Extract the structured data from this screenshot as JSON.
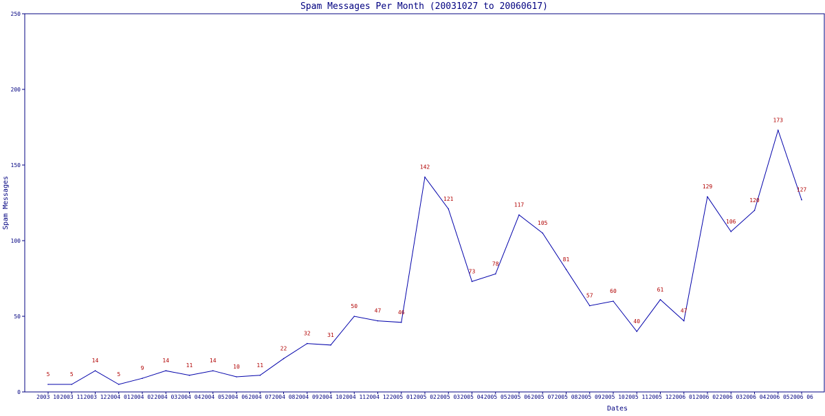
{
  "chart_data": {
    "type": "line",
    "title": "Spam Messages Per Month (20031027 to 20060617)",
    "xlabel": "Dates",
    "ylabel": "Spam Messages",
    "ylim": [
      0,
      250
    ],
    "yticks": [
      0,
      50,
      100,
      150,
      200,
      250
    ],
    "grid": false,
    "legend": "none",
    "line_color": "#0000aa",
    "label_color": "#b00000",
    "axis_color": "#000080",
    "x_tick_labels": [
      "2003 10",
      "2003 11",
      "2003 12",
      "2004 01",
      "2004 02",
      "2004 03",
      "2004 04",
      "2004 05",
      "2004 06",
      "2004 07",
      "2004 08",
      "2004 09",
      "2004 10",
      "2004 11",
      "2004 12",
      "2005 01",
      "2005 02",
      "2005 03",
      "2005 04",
      "2005 05",
      "2005 06",
      "2005 07",
      "2005 08",
      "2005 09",
      "2005 10",
      "2005 11",
      "2005 12",
      "2006 01",
      "2006 02",
      "2006 03",
      "2006 04",
      "2006 05",
      "2006 06"
    ],
    "categories": [
      "2003-10",
      "2003-11",
      "2003-12",
      "2004-01",
      "2004-02",
      "2004-03",
      "2004-04",
      "2004-05",
      "2004-06",
      "2004-07",
      "2004-08",
      "2004-09",
      "2004-10",
      "2004-11",
      "2004-12",
      "2005-01",
      "2005-02",
      "2005-03",
      "2005-04",
      "2005-05",
      "2005-06",
      "2005-07",
      "2005-08",
      "2005-09",
      "2005-10",
      "2005-11",
      "2005-12",
      "2006-01",
      "2006-02",
      "2006-03",
      "2006-04",
      "2006-05",
      "2006-06"
    ],
    "values": [
      5,
      5,
      14,
      5,
      9,
      14,
      11,
      14,
      10,
      11,
      22,
      32,
      31,
      50,
      47,
      46,
      142,
      121,
      73,
      78,
      117,
      105,
      81,
      57,
      60,
      40,
      61,
      47,
      129,
      106,
      120,
      173,
      127
    ],
    "data_labels": [
      "5",
      "5",
      "14",
      "5",
      "9",
      "14",
      "11",
      "14",
      "10",
      "11",
      "22",
      "32",
      "31",
      "50",
      "47",
      "46",
      "142",
      "121",
      "73",
      "78",
      "117",
      "105",
      "81",
      "57",
      "60",
      "40",
      "61",
      "47",
      "129",
      "106",
      "120",
      "173",
      "127"
    ]
  }
}
